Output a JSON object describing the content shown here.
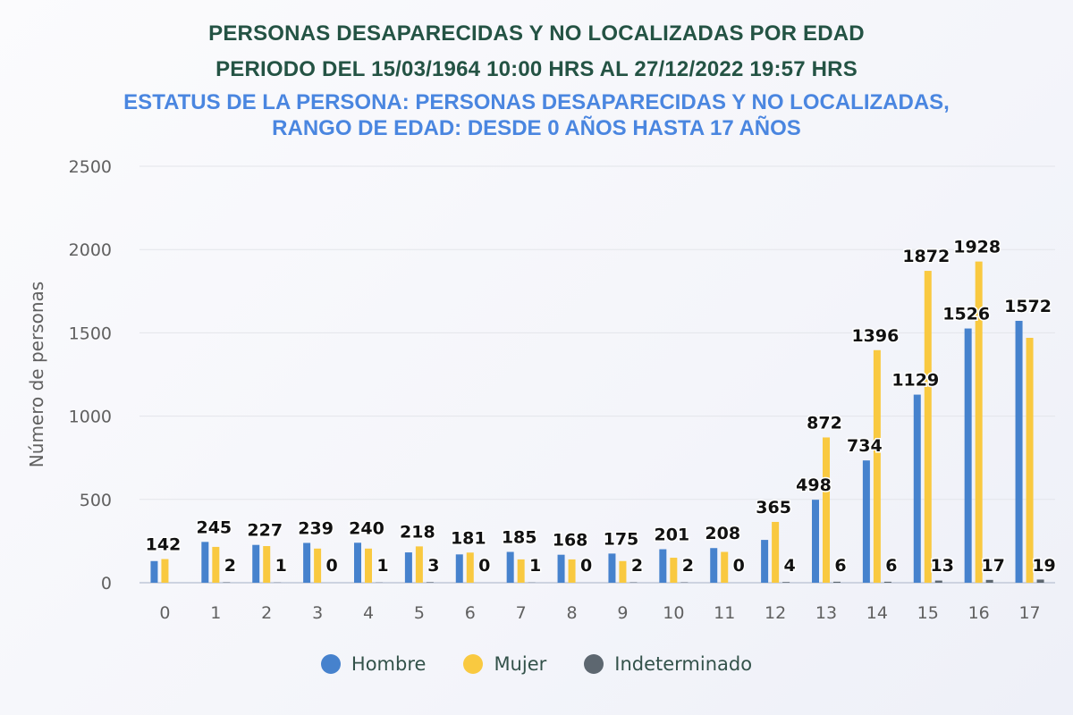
{
  "chart_data": {
    "type": "bar",
    "title": "PERSONAS DESAPARECIDAS Y NO LOCALIZADAS POR EDAD",
    "subtitle_period": "PERIODO DEL 15/03/1964 10:00 HRS AL 27/12/2022 19:57 HRS",
    "subtitle_filter": "ESTATUS DE LA PERSONA: PERSONAS DESAPARECIDAS Y NO LOCALIZADAS, RANGO DE EDAD: DESDE 0 AÑOS HASTA 17 AÑOS",
    "xlabel": "",
    "ylabel": "Número de personas",
    "ylim": [
      0,
      2500
    ],
    "yticks": [
      "0",
      "500",
      "1000",
      "1500",
      "2000",
      "2500"
    ],
    "grid": true,
    "legend_position": "bottom",
    "categories": [
      "0",
      "1",
      "2",
      "3",
      "4",
      "5",
      "6",
      "7",
      "8",
      "9",
      "10",
      "11",
      "12",
      "13",
      "14",
      "15",
      "16",
      "17"
    ],
    "series": [
      {
        "name": "Hombre",
        "color": "#4682cd",
        "values": [
          130,
          245,
          227,
          239,
          240,
          182,
          170,
          185,
          168,
          175,
          201,
          208,
          257,
          498,
          734,
          1129,
          1526,
          1572
        ]
      },
      {
        "name": "Mujer",
        "color": "#f9c940",
        "values": [
          142,
          215,
          220,
          205,
          205,
          218,
          181,
          140,
          140,
          130,
          150,
          185,
          365,
          872,
          1396,
          1872,
          1928,
          1470
        ]
      },
      {
        "name": "Indeterminado",
        "color": "#5d6770",
        "values": [
          0,
          2,
          1,
          0,
          1,
          3,
          0,
          1,
          0,
          2,
          2,
          0,
          4,
          6,
          6,
          13,
          17,
          19
        ]
      }
    ],
    "data_labels": [
      {
        "category": "0",
        "top": "142",
        "bottom": ""
      },
      {
        "category": "1",
        "top": "245",
        "bottom": "2"
      },
      {
        "category": "2",
        "top": "227",
        "bottom": "1"
      },
      {
        "category": "3",
        "top": "239",
        "bottom": "0"
      },
      {
        "category": "4",
        "top": "240",
        "bottom": "1"
      },
      {
        "category": "5",
        "top": "218",
        "bottom": "3"
      },
      {
        "category": "6",
        "top": "181",
        "bottom": "0"
      },
      {
        "category": "7",
        "top": "185",
        "bottom": "1"
      },
      {
        "category": "8",
        "top": "168",
        "bottom": "0"
      },
      {
        "category": "9",
        "top": "175",
        "bottom": "2"
      },
      {
        "category": "10",
        "top": "201",
        "bottom": "2"
      },
      {
        "category": "11",
        "top": "208",
        "bottom": "0"
      },
      {
        "category": "12",
        "top": "365",
        "bottom": "4"
      },
      {
        "category": "13",
        "top": "872",
        "mid": "498",
        "bottom": "6"
      },
      {
        "category": "14",
        "top": "1396",
        "mid": "734",
        "bottom": "6"
      },
      {
        "category": "15",
        "top": "1872",
        "mid": "1129",
        "bottom": "13"
      },
      {
        "category": "16",
        "top": "1928",
        "mid": "1526",
        "bottom": "17"
      },
      {
        "category": "17",
        "top": "1572",
        "bottom": "19"
      }
    ]
  },
  "legend": {
    "items": [
      {
        "label": "Hombre",
        "color": "#4682cd"
      },
      {
        "label": "Mujer",
        "color": "#f9c940"
      },
      {
        "label": "Indeterminado",
        "color": "#5d6770"
      }
    ]
  }
}
